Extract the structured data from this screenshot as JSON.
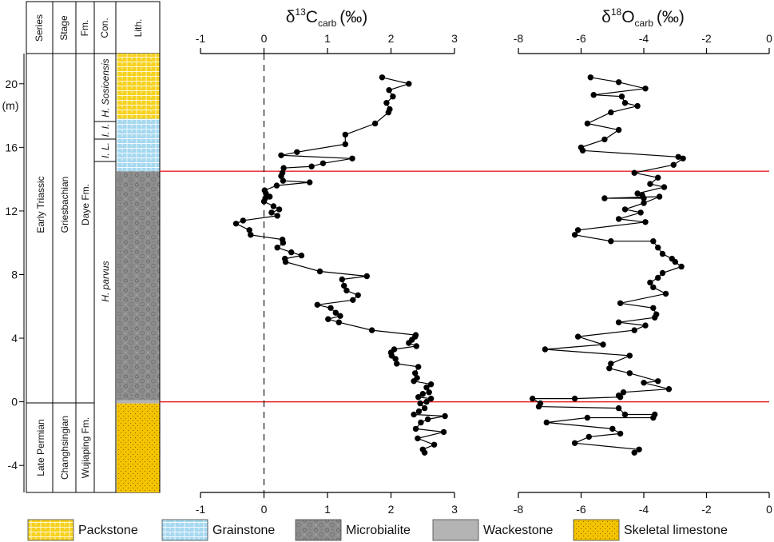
{
  "column_headers": [
    "Series",
    "Stage",
    "Fm.",
    "Con.",
    "Lith."
  ],
  "column_texts": {
    "series_upper": "Early Triassic",
    "series_lower": "Late Permian",
    "stage_upper": "Griesbachian",
    "stage_lower": "Changhsingian",
    "fm_upper": "Daye Fm.",
    "fm_lower": "Wujiaping Fm.",
    "con_sosioensis": "H. Sosioensis",
    "con_ii": "I. I.",
    "con_il": "I. L.",
    "con_parvus": "H. parvus"
  },
  "depth_unit_label": "(m)",
  "boundary_depths_m": [
    0,
    14.5
  ],
  "colors": {
    "boundary_line": "#e8202a",
    "packstone": "#f6d21e",
    "grainstone": "#a6d8f0",
    "microbialite": "#8e8e8e",
    "wackestone": "#b4b4b4",
    "skeletal": "#f5c400"
  },
  "lithology_units": [
    {
      "name": "Skeletal limestone",
      "from": -5.7,
      "to": -0.1
    },
    {
      "name": "Wackestone",
      "from": -0.1,
      "to": 0.1
    },
    {
      "name": "Microbialite",
      "from": 0.1,
      "to": 14.5
    },
    {
      "name": "Grainstone",
      "from": 14.5,
      "to": 17.8
    },
    {
      "name": "Packstone",
      "from": 17.8,
      "to": 21.9
    }
  ],
  "legend": [
    {
      "label": "Packstone",
      "pattern": "pack"
    },
    {
      "label": "Grainstone",
      "pattern": "grain"
    },
    {
      "label": "Microbialite",
      "pattern": "micro"
    },
    {
      "label": "Wackestone",
      "pattern": "wacke"
    },
    {
      "label": "Skeletal limestone",
      "pattern": "skel"
    }
  ],
  "chart_data": [
    {
      "type": "line",
      "title_parts": {
        "delta": "δ",
        "iso": "13",
        "elem": "C",
        "sub": "carb",
        "unit": "(‰)"
      },
      "xlim": [
        -1,
        3
      ],
      "xticks": [
        -1,
        0,
        1,
        2,
        3
      ],
      "ylim": [
        -5.7,
        21.9
      ],
      "yticks": [
        -4,
        0,
        4,
        8,
        12,
        16,
        20
      ],
      "zero_reference_dashed": true,
      "points": [
        [
          1.86,
          20.4
        ],
        [
          2.28,
          20.0
        ],
        [
          1.97,
          19.6
        ],
        [
          2.03,
          19.2
        ],
        [
          1.93,
          18.8
        ],
        [
          1.98,
          18.4
        ],
        [
          1.96,
          18.2
        ],
        [
          1.75,
          17.5
        ],
        [
          1.28,
          16.8
        ],
        [
          1.28,
          16.2
        ],
        [
          0.52,
          15.7
        ],
        [
          0.27,
          15.5
        ],
        [
          1.39,
          15.3
        ],
        [
          0.93,
          15.0
        ],
        [
          0.75,
          14.8
        ],
        [
          0.31,
          14.7
        ],
        [
          0.29,
          14.4
        ],
        [
          0.27,
          14.2
        ],
        [
          0.3,
          13.9
        ],
        [
          0.72,
          13.8
        ],
        [
          0.2,
          13.6
        ],
        [
          0.01,
          13.3
        ],
        [
          0.03,
          13.1
        ],
        [
          0.09,
          12.9
        ],
        [
          0.02,
          12.8
        ],
        [
          0.0,
          12.6
        ],
        [
          0.15,
          12.3
        ],
        [
          0.24,
          12.1
        ],
        [
          0.12,
          11.9
        ],
        [
          0.21,
          11.7
        ],
        [
          -0.33,
          11.4
        ],
        [
          -0.44,
          11.2
        ],
        [
          -0.23,
          10.8
        ],
        [
          -0.21,
          10.5
        ],
        [
          0.29,
          10.2
        ],
        [
          0.3,
          10.0
        ],
        [
          0.21,
          9.7
        ],
        [
          0.43,
          9.4
        ],
        [
          0.59,
          9.2
        ],
        [
          0.33,
          9.0
        ],
        [
          0.34,
          8.8
        ],
        [
          0.88,
          8.2
        ],
        [
          1.62,
          7.9
        ],
        [
          1.23,
          7.7
        ],
        [
          1.26,
          7.3
        ],
        [
          1.3,
          7.0
        ],
        [
          1.48,
          6.7
        ],
        [
          1.4,
          6.4
        ],
        [
          0.84,
          6.1
        ],
        [
          1.05,
          5.9
        ],
        [
          1.13,
          5.6
        ],
        [
          1.2,
          5.4
        ],
        [
          1.01,
          5.2
        ],
        [
          1.18,
          5.0
        ],
        [
          1.7,
          4.5
        ],
        [
          2.39,
          4.2
        ],
        [
          2.38,
          4.1
        ],
        [
          2.33,
          3.9
        ],
        [
          2.28,
          3.7
        ],
        [
          2.4,
          3.5
        ],
        [
          2.05,
          3.3
        ],
        [
          2.0,
          3.1
        ],
        [
          2.01,
          2.9
        ],
        [
          2.07,
          2.7
        ],
        [
          2.09,
          2.4
        ],
        [
          2.43,
          2.2
        ],
        [
          2.38,
          1.8
        ],
        [
          2.41,
          1.5
        ],
        [
          2.36,
          1.3
        ],
        [
          2.63,
          1.1
        ],
        [
          2.56,
          0.9
        ],
        [
          2.6,
          0.6
        ],
        [
          2.5,
          0.5
        ],
        [
          2.43,
          0.3
        ],
        [
          2.63,
          0.2
        ],
        [
          2.56,
          0.0
        ],
        [
          2.46,
          -0.1
        ],
        [
          2.53,
          -0.4
        ],
        [
          2.44,
          -0.6
        ],
        [
          2.36,
          -0.8
        ],
        [
          2.85,
          -0.9
        ],
        [
          2.58,
          -1.1
        ],
        [
          2.47,
          -1.3
        ],
        [
          2.39,
          -1.7
        ],
        [
          2.83,
          -1.9
        ],
        [
          2.42,
          -2.3
        ],
        [
          2.68,
          -2.7
        ],
        [
          2.5,
          -3.0
        ],
        [
          2.53,
          -3.2
        ]
      ]
    },
    {
      "type": "line",
      "title_parts": {
        "delta": "δ",
        "iso": "18",
        "elem": "O",
        "sub": "carb",
        "unit": "(‰)"
      },
      "xlim": [
        -8,
        0
      ],
      "xticks": [
        -8,
        -6,
        -4,
        -2,
        0
      ],
      "ylim": [
        -5.7,
        21.9
      ],
      "yticks": [
        -4,
        0,
        4,
        8,
        12,
        16,
        20
      ],
      "points": [
        [
          -5.7,
          20.4
        ],
        [
          -4.8,
          20.1
        ],
        [
          -3.95,
          19.7
        ],
        [
          -5.6,
          19.3
        ],
        [
          -4.7,
          19.2
        ],
        [
          -4.6,
          18.8
        ],
        [
          -4.2,
          18.6
        ],
        [
          -5.05,
          18.2
        ],
        [
          -5.8,
          17.5
        ],
        [
          -4.8,
          17.1
        ],
        [
          -5.25,
          16.5
        ],
        [
          -6.0,
          16.0
        ],
        [
          -5.95,
          15.8
        ],
        [
          -2.9,
          15.4
        ],
        [
          -2.75,
          15.3
        ],
        [
          -3.05,
          14.9
        ],
        [
          -4.3,
          14.4
        ],
        [
          -3.55,
          14.1
        ],
        [
          -3.8,
          13.7
        ],
        [
          -3.35,
          13.5
        ],
        [
          -4.2,
          13.1
        ],
        [
          -4.05,
          13.0
        ],
        [
          -4.0,
          12.8
        ],
        [
          -5.25,
          12.8
        ],
        [
          -3.5,
          12.9
        ],
        [
          -4.0,
          12.5
        ],
        [
          -4.6,
          12.1
        ],
        [
          -4.1,
          11.9
        ],
        [
          -4.8,
          11.5
        ],
        [
          -3.95,
          11.3
        ],
        [
          -6.1,
          10.8
        ],
        [
          -6.2,
          10.5
        ],
        [
          -5.05,
          10.1
        ],
        [
          -3.7,
          10.1
        ],
        [
          -3.55,
          9.7
        ],
        [
          -3.4,
          9.3
        ],
        [
          -3.1,
          9.0
        ],
        [
          -3.0,
          8.8
        ],
        [
          -2.8,
          8.5
        ],
        [
          -3.4,
          8.1
        ],
        [
          -3.55,
          7.8
        ],
        [
          -3.8,
          7.5
        ],
        [
          -3.7,
          7.2
        ],
        [
          -3.3,
          6.8
        ],
        [
          -4.75,
          6.2
        ],
        [
          -3.7,
          5.9
        ],
        [
          -3.6,
          5.5
        ],
        [
          -3.65,
          5.3
        ],
        [
          -4.8,
          5.0
        ],
        [
          -3.95,
          4.8
        ],
        [
          -4.3,
          4.5
        ],
        [
          -6.1,
          4.1
        ],
        [
          -5.3,
          3.6
        ],
        [
          -7.15,
          3.3
        ],
        [
          -4.45,
          2.9
        ],
        [
          -5.05,
          2.4
        ],
        [
          -5.1,
          2.1
        ],
        [
          -4.45,
          1.8
        ],
        [
          -3.55,
          1.3
        ],
        [
          -4.0,
          1.2
        ],
        [
          -3.2,
          0.8
        ],
        [
          -4.65,
          0.6
        ],
        [
          -4.8,
          0.4
        ],
        [
          -4.75,
          0.3
        ],
        [
          -6.2,
          0.2
        ],
        [
          -7.55,
          0.2
        ],
        [
          -7.3,
          -0.1
        ],
        [
          -7.35,
          -0.3
        ],
        [
          -4.8,
          -0.4
        ],
        [
          -4.6,
          -0.8
        ],
        [
          -3.65,
          -0.8
        ],
        [
          -3.7,
          -1.0
        ],
        [
          -5.8,
          -1.0
        ],
        [
          -7.1,
          -1.3
        ],
        [
          -5.0,
          -1.7
        ],
        [
          -4.75,
          -2.0
        ],
        [
          -5.75,
          -2.2
        ],
        [
          -6.2,
          -2.6
        ],
        [
          -4.15,
          -3.0
        ],
        [
          -4.3,
          -3.2
        ]
      ]
    }
  ]
}
